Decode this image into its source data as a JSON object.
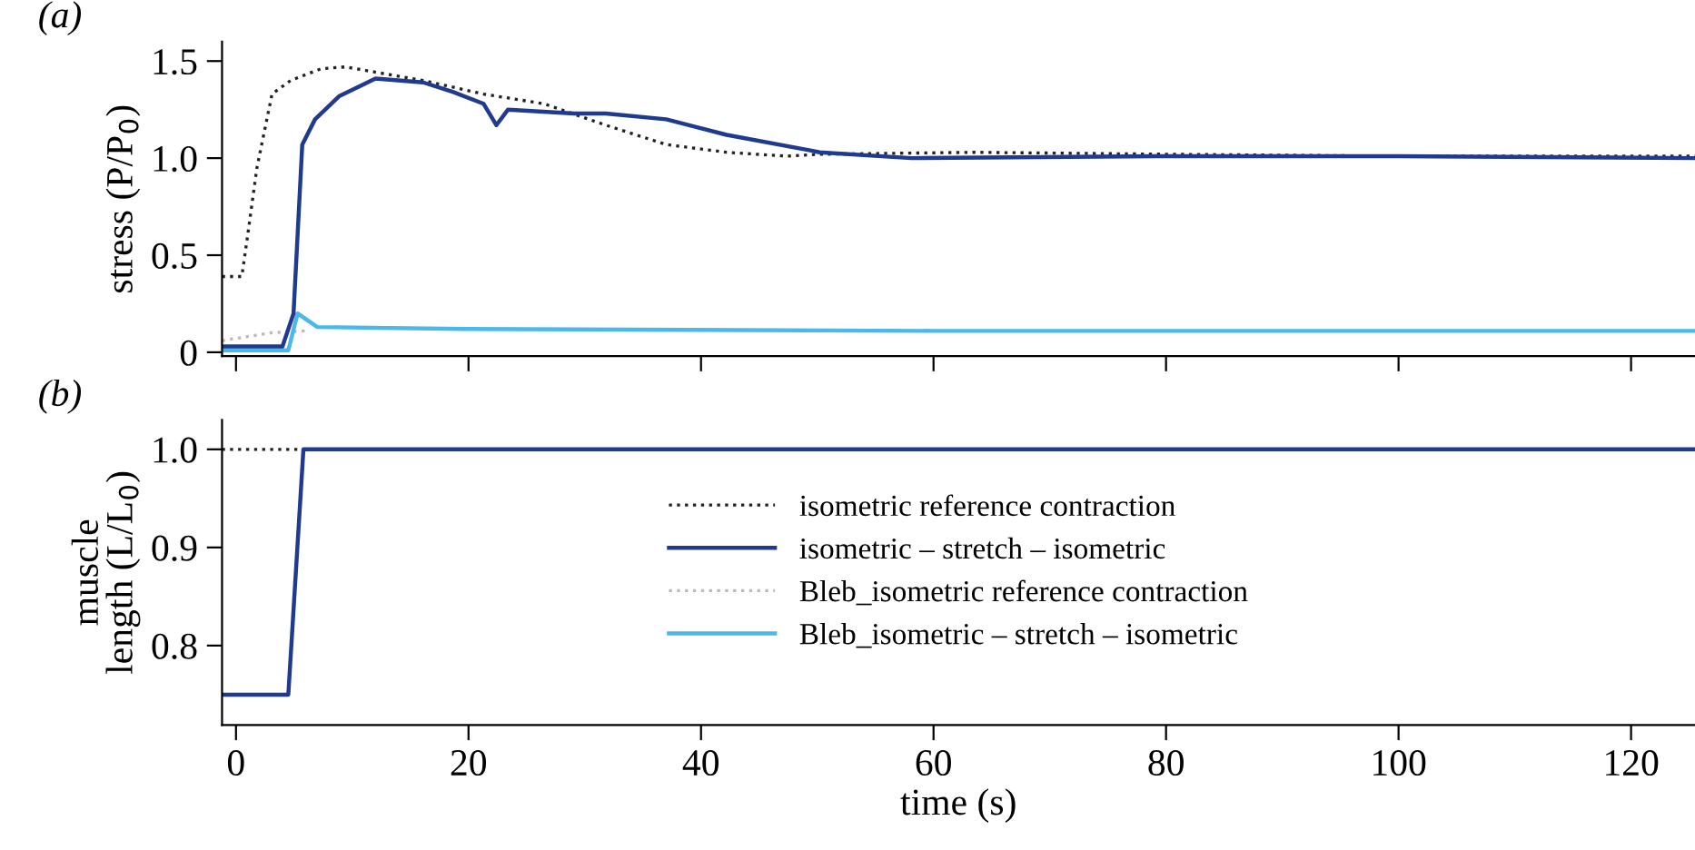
{
  "chart_data": [
    {
      "type": "line",
      "ylabel": "stress (P/P$_{0}$)",
      "annotations": [
        "(a)"
      ],
      "xlim": [
        -1.2,
        125.5
      ],
      "xticks": [
        0,
        20,
        40,
        60,
        80,
        100,
        120
      ],
      "ylim": [
        -0.02,
        1.6
      ],
      "yticks": [
        0,
        0.5,
        {
          "value": 1,
          "label": "1.0"
        },
        1.5
      ],
      "tick_labels": "y",
      "grid": false,
      "legend": false,
      "series": [
        {
          "color": "#222222",
          "line_style": "dotted",
          "x": [
            -1.2,
            0.5,
            1.0,
            1.8,
            3.1,
            4.7,
            7.3,
            9.4,
            16.1,
            21.3,
            26.5,
            31.8,
            37,
            42.2,
            47.4,
            50.2,
            63.5,
            80,
            100,
            125.5
          ],
          "values": [
            0.39,
            0.39,
            0.6,
            0.95,
            1.33,
            1.4,
            1.46,
            1.47,
            1.4,
            1.33,
            1.28,
            1.17,
            1.07,
            1.03,
            1.01,
            1.02,
            1.03,
            1.02,
            1.01,
            1.01
          ]
        },
        {
          "color": "#bbbbbb",
          "line_style": "dotted",
          "x": [
            -1.2,
            3,
            6
          ],
          "values": [
            0.06,
            0.1,
            0.11
          ]
        },
        {
          "color": "#4cb8ea",
          "line_style": "solid",
          "x": [
            -1.2,
            4.5,
            5.3,
            7,
            20,
            60,
            125.5
          ],
          "values": [
            0.01,
            0.01,
            0.2,
            0.13,
            0.12,
            0.11,
            0.11
          ]
        },
        {
          "color": "#1f3a8f",
          "line_style": "solid",
          "x": [
            -1.2,
            4.0,
            4.95,
            5.7,
            6.8,
            8.9,
            12,
            16.1,
            18.7,
            21.3,
            22.4,
            23.4,
            29.1,
            31.8,
            37,
            42.2,
            49.4,
            50.2,
            58.1,
            80,
            100,
            125.5
          ],
          "values": [
            0.03,
            0.03,
            0.2,
            1.07,
            1.2,
            1.32,
            1.41,
            1.39,
            1.34,
            1.28,
            1.17,
            1.25,
            1.23,
            1.23,
            1.2,
            1.12,
            1.04,
            1.03,
            1.0,
            1.01,
            1.01,
            1.0
          ]
        }
      ]
    },
    {
      "type": "line",
      "xlabel": "time (s)",
      "ylabel": "muscle\nlength (L/L$_{0}$)",
      "annotations": [
        "(b)"
      ],
      "xlim": [
        -1.2,
        125.5
      ],
      "xticks": [
        0,
        20,
        40,
        60,
        80,
        100,
        120
      ],
      "ylim": [
        0.719,
        1.03
      ],
      "yticks": [
        0.8,
        0.9,
        {
          "value": 1,
          "label": "1.0"
        }
      ],
      "grid": false,
      "legend": "center",
      "series": [
        {
          "name": "isometric reference contraction",
          "color": "#222222",
          "line_style": "dotted",
          "x": [
            -1.2,
            5.5
          ],
          "values": [
            1.0,
            1.0
          ]
        },
        {
          "name": "isometric – stretch – isometric",
          "color": "#1f3a8f",
          "line_style": "solid",
          "x": [
            -1.2,
            4.5,
            5.8,
            125.5
          ],
          "values": [
            0.75,
            0.75,
            1.0,
            1.0
          ]
        },
        {
          "name": "Bleb_isometric reference contraction",
          "color": "#bbbbbb",
          "line_style": "dotted"
        },
        {
          "name": "Bleb_isometric – stretch – isometric",
          "color": "#4cb8ea",
          "line_style": "solid"
        }
      ]
    }
  ]
}
